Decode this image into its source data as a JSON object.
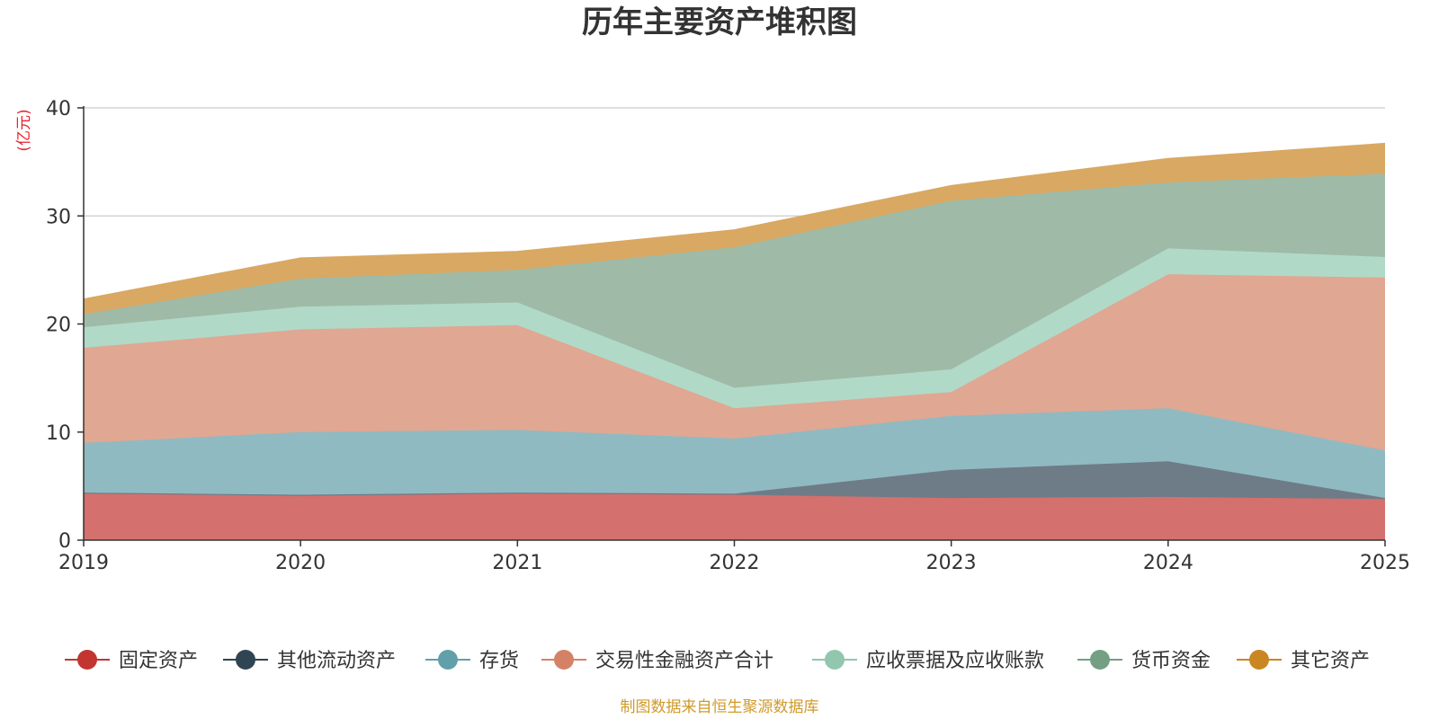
{
  "chart_data": {
    "type": "area",
    "stacked": true,
    "title": "历年主要资产堆积图",
    "unit_label": "(亿元)",
    "source_note": "制图数据来自恒生聚源数据库",
    "x": [
      "2019",
      "2020",
      "2021",
      "2022",
      "2023",
      "2024",
      "2025"
    ],
    "y_ticks": [
      "0",
      "10",
      "20",
      "30",
      "40"
    ],
    "ylim": [
      0,
      40
    ],
    "grid": true,
    "legend_position": "bottom",
    "series": [
      {
        "name": "固定资产",
        "color": "#c23531",
        "fill": "#d4706d",
        "values": [
          4.3,
          4.1,
          4.3,
          4.2,
          3.9,
          4.0,
          3.8
        ]
      },
      {
        "name": "其他流动资产",
        "color": "#2f4554",
        "fill": "#6e7c88",
        "values": [
          0.1,
          0.1,
          0.1,
          0.1,
          2.6,
          3.3,
          0.1
        ]
      },
      {
        "name": "存货",
        "color": "#61a0a8",
        "fill": "#90bac1",
        "values": [
          4.6,
          5.8,
          5.8,
          5.1,
          5.0,
          4.9,
          4.4
        ]
      },
      {
        "name": "交易性金融资产合计",
        "color": "#d48265",
        "fill": "#e0a793",
        "values": [
          8.8,
          9.5,
          9.7,
          2.8,
          2.2,
          12.4,
          16.0
        ]
      },
      {
        "name": "应收票据及应收账款",
        "color": "#91c7ae",
        "fill": "#b0dac7",
        "values": [
          1.9,
          2.1,
          2.1,
          1.9,
          2.1,
          2.4,
          1.9
        ]
      },
      {
        "name": "货币资金",
        "color": "#749f83",
        "fill": "#9fbba7",
        "values": [
          1.2,
          2.6,
          3.0,
          13.0,
          15.6,
          6.1,
          7.7
        ]
      },
      {
        "name": "其它资产",
        "color": "#ca8622",
        "fill": "#d9a862",
        "values": [
          1.4,
          1.9,
          1.7,
          1.6,
          1.4,
          2.2,
          2.8
        ]
      }
    ]
  }
}
